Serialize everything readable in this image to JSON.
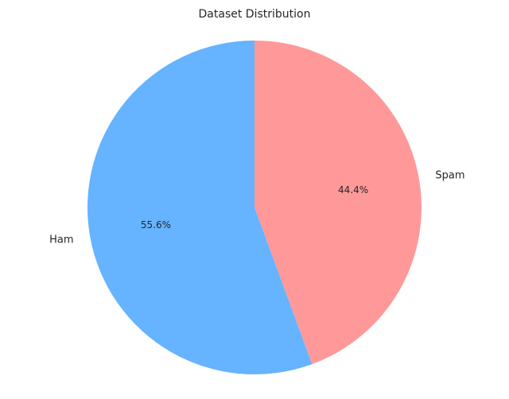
{
  "chart_data": {
    "type": "pie",
    "title": "Dataset Distribution",
    "slices": [
      {
        "label": "Spam",
        "value": 44.4,
        "display": "44.4%",
        "color": "#ff9999"
      },
      {
        "label": "Ham",
        "value": 55.6,
        "display": "55.6%",
        "color": "#66b3ff"
      }
    ],
    "start_angle_deg": 90,
    "direction": "clockwise",
    "legend": "none"
  }
}
